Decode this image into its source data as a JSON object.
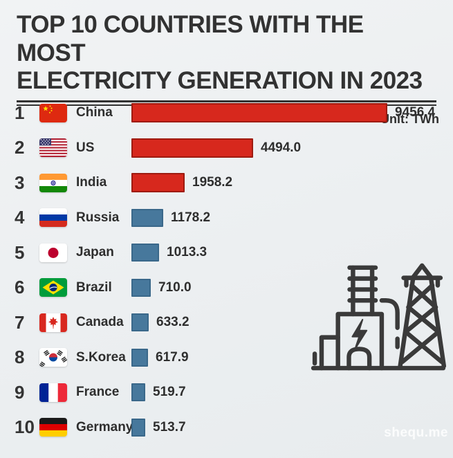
{
  "title": {
    "line1": "TOP 10 COUNTRIES WITH THE MOST",
    "line2": "ELECTRICITY GENERATION IN 2023"
  },
  "unit_label": "Unit: TWh",
  "watermark": "shequ.me",
  "colors": {
    "background": "#edeff1",
    "text": "#323232",
    "top3_bar": "#d7281d",
    "top3_border": "#9e1b10",
    "other_bar": "#47789c",
    "other_border": "#3a688a",
    "icon_stroke": "#3a3a3a"
  },
  "decor_icon": "power-plant-and-transmission-tower-icon",
  "chart_data": {
    "type": "bar",
    "orientation": "horizontal",
    "title": "TOP 10 COUNTRIES WITH THE MOST ELECTRICITY GENERATION IN 2023",
    "unit": "TWh",
    "categories": [
      "China",
      "US",
      "India",
      "Russia",
      "Japan",
      "Brazil",
      "Canada",
      "S.Korea",
      "France",
      "Germany"
    ],
    "values": [
      9456.4,
      4494.0,
      1958.2,
      1178.2,
      1013.3,
      710.0,
      633.2,
      617.9,
      519.7,
      513.7
    ],
    "xlim": [
      0,
      9456.4
    ],
    "value_labels_shown": true,
    "grid": false,
    "legend": false,
    "color_groups": {
      "ranks_1_to_3": "red",
      "ranks_4_to_10": "steel-blue"
    }
  },
  "rows": [
    {
      "rank": "1",
      "country": "China",
      "value": "9456.4",
      "flag": "cn",
      "icon": "china-flag-icon",
      "bar_color_group": "top3"
    },
    {
      "rank": "2",
      "country": "US",
      "value": "4494.0",
      "flag": "us",
      "icon": "us-flag-icon",
      "bar_color_group": "top3"
    },
    {
      "rank": "3",
      "country": "India",
      "value": "1958.2",
      "flag": "in",
      "icon": "india-flag-icon",
      "bar_color_group": "top3"
    },
    {
      "rank": "4",
      "country": "Russia",
      "value": "1178.2",
      "flag": "ru",
      "icon": "russia-flag-icon",
      "bar_color_group": "other"
    },
    {
      "rank": "5",
      "country": "Japan",
      "value": "1013.3",
      "flag": "jp",
      "icon": "japan-flag-icon",
      "bar_color_group": "other"
    },
    {
      "rank": "6",
      "country": "Brazil",
      "value": "710.0",
      "flag": "br",
      "icon": "brazil-flag-icon",
      "bar_color_group": "other"
    },
    {
      "rank": "7",
      "country": "Canada",
      "value": "633.2",
      "flag": "ca",
      "icon": "canada-flag-icon",
      "bar_color_group": "other"
    },
    {
      "rank": "8",
      "country": "S.Korea",
      "value": "617.9",
      "flag": "kr",
      "icon": "skorea-flag-icon",
      "bar_color_group": "other"
    },
    {
      "rank": "9",
      "country": "France",
      "value": "519.7",
      "flag": "fr",
      "icon": "france-flag-icon",
      "bar_color_group": "other"
    },
    {
      "rank": "10",
      "country": "Germany",
      "value": "513.7",
      "flag": "de",
      "icon": "germany-flag-icon",
      "bar_color_group": "other"
    }
  ]
}
